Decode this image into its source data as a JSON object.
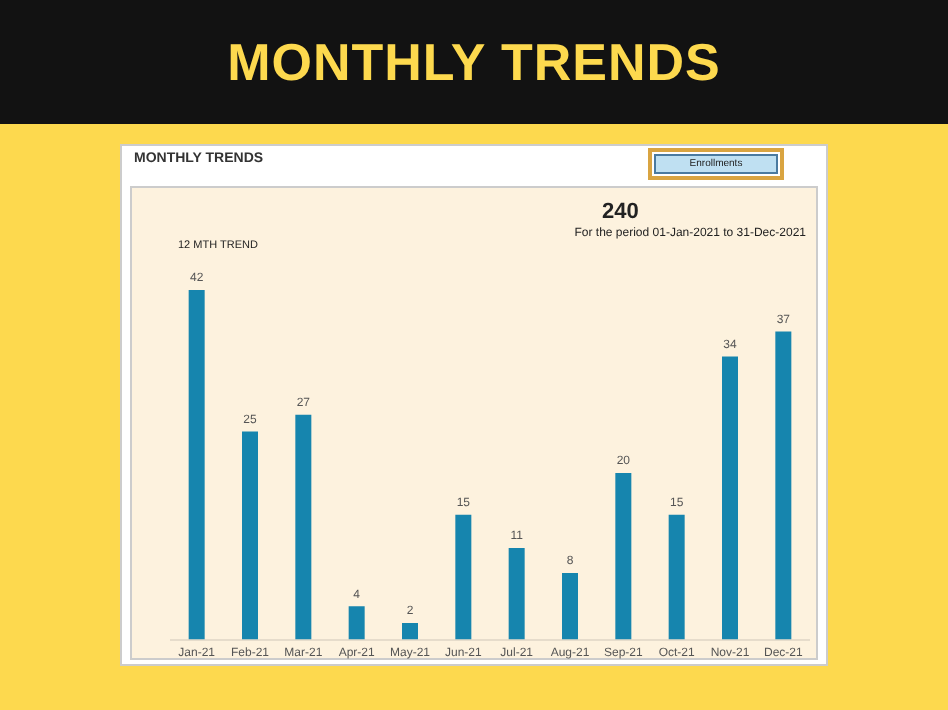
{
  "chart_data": {
    "type": "bar",
    "title": "MONTHLY TRENDS",
    "subtitle": "MONTHLY TRENDS",
    "annotations": [
      "Enrollments",
      "240",
      "For the period  01-Jan-2021    to    31-Dec-2021",
      "12 MTH TREND"
    ],
    "categories": [
      "Jan-21",
      "Feb-21",
      "Mar-21",
      "Apr-21",
      "May-21",
      "Jun-21",
      "Jul-21",
      "Aug-21",
      "Sep-21",
      "Oct-21",
      "Nov-21",
      "Dec-21"
    ],
    "values": [
      42,
      25,
      27,
      4,
      2,
      15,
      11,
      8,
      20,
      15,
      34,
      37
    ],
    "color": "#1685ae",
    "data_labels": true,
    "grid": false,
    "legend": false
  }
}
